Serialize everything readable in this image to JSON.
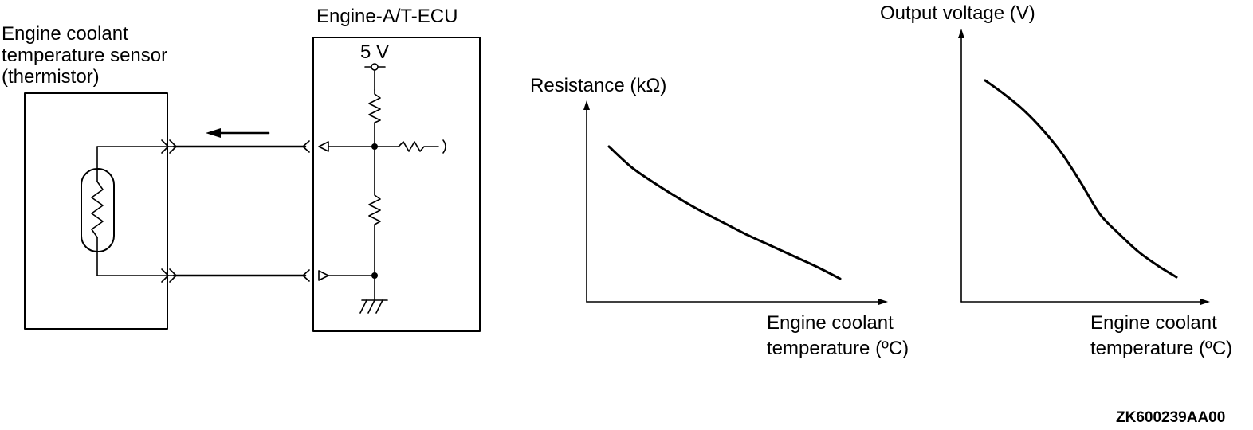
{
  "circuit": {
    "sensor_label": [
      "Engine coolant",
      "temperature sensor",
      "(thermistor)"
    ],
    "ecu_label": "Engine-A/T-ECU",
    "supply_label": "5 V"
  },
  "chart_data": [
    {
      "type": "line",
      "ylabel": "Resistance (kΩ)",
      "xlabel": "Engine coolant temperature (°C)",
      "xlabel_lines": [
        "Engine coolant",
        "temperature (ºC)"
      ],
      "x": [
        0.0,
        0.1,
        0.2,
        0.3,
        0.4,
        0.5,
        0.6,
        0.7,
        0.8,
        0.9,
        1.0
      ],
      "series": [
        {
          "values": [
            1.0,
            0.84,
            0.72,
            0.61,
            0.51,
            0.42,
            0.33,
            0.25,
            0.17,
            0.09,
            0.0
          ]
        }
      ]
    },
    {
      "type": "line",
      "ylabel": "Output voltage (V)",
      "xlabel": "Engine coolant temperature (°C)",
      "xlabel_lines": [
        "Engine coolant",
        "temperature (ºC)"
      ],
      "x": [
        0.0,
        0.1,
        0.2,
        0.3,
        0.4,
        0.5,
        0.6,
        0.7,
        0.8,
        0.9,
        1.0
      ],
      "series": [
        {
          "values": [
            1.0,
            0.93,
            0.85,
            0.75,
            0.63,
            0.48,
            0.32,
            0.22,
            0.13,
            0.06,
            0.0
          ]
        }
      ]
    }
  ],
  "figure_code": "ZK600239AA00"
}
